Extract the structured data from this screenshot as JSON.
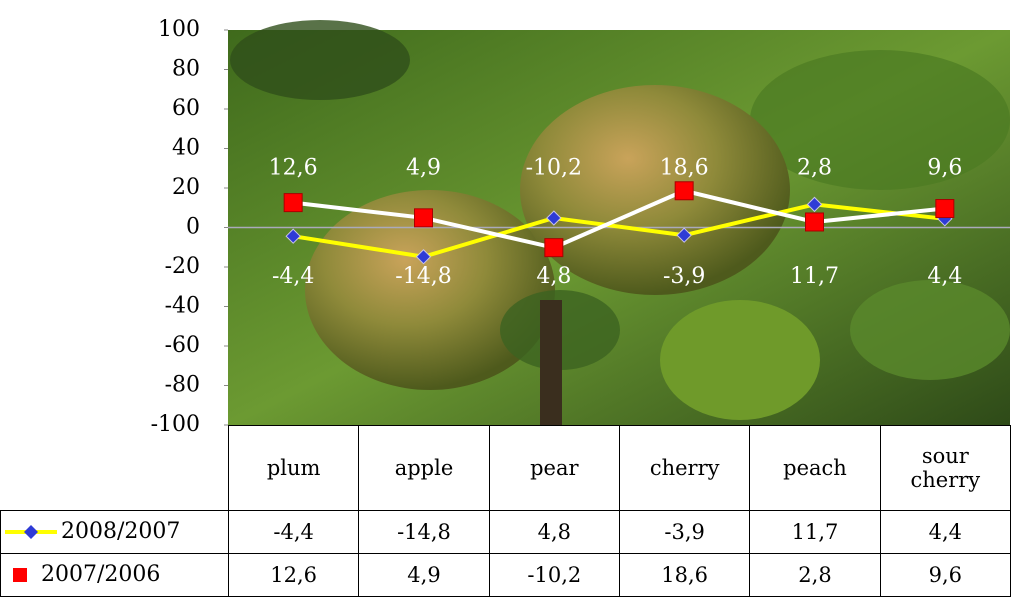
{
  "chart_data": {
    "type": "line",
    "categories": [
      "plum",
      "apple",
      "pear",
      "cherry",
      "peach",
      "sour cherry"
    ],
    "series": [
      {
        "name": "2008/2007",
        "color": "#ffff00",
        "marker_color": "#2e3bd6",
        "marker": "diamond",
        "values": [
          -4.4,
          -14.8,
          4.8,
          -3.9,
          11.7,
          4.4
        ],
        "value_labels": [
          "-4,4",
          "-14,8",
          "4,8",
          "-3,9",
          "11,7",
          "4,4"
        ]
      },
      {
        "name": "2007/2006",
        "color": "#ffffff",
        "marker_color": "#ff0000",
        "marker": "square",
        "values": [
          12.6,
          4.9,
          -10.2,
          18.6,
          2.8,
          9.6
        ],
        "value_labels": [
          "12,6",
          "4,9",
          "-10,2",
          "18,6",
          "2,8",
          "9,6"
        ]
      }
    ],
    "ylim": [
      -100,
      100
    ],
    "yticks": [
      -100,
      -80,
      -60,
      -40,
      -20,
      0,
      20,
      40,
      60,
      80,
      100
    ]
  }
}
